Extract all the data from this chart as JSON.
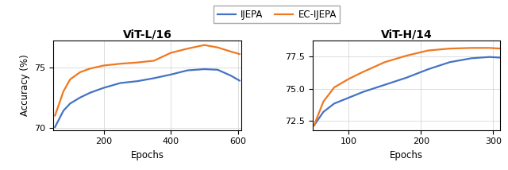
{
  "title1": "ViT-L/16",
  "title2": "ViT-H/14",
  "xlabel": "Epochs",
  "ylabel": "Accuracy (%)",
  "legend_labels": [
    "IJEPA",
    "EC-IJEPA"
  ],
  "colors": {
    "ijepa": "#4472c4",
    "ec_ijepa": "#f07820"
  },
  "plot1": {
    "xlim": [
      50,
      610
    ],
    "ylim": [
      69.8,
      77.2
    ],
    "xticks": [
      200,
      400,
      600
    ],
    "yticks": [
      70,
      75
    ],
    "ijepa_x": [
      55,
      80,
      100,
      130,
      160,
      200,
      250,
      300,
      350,
      400,
      450,
      500,
      540,
      580,
      605
    ],
    "ijepa_y": [
      70.05,
      71.4,
      72.0,
      72.5,
      72.9,
      73.3,
      73.7,
      73.85,
      74.1,
      74.4,
      74.75,
      74.85,
      74.8,
      74.3,
      73.9
    ],
    "ec_x": [
      55,
      80,
      100,
      130,
      160,
      200,
      250,
      300,
      350,
      400,
      450,
      500,
      540,
      580,
      605
    ],
    "ec_y": [
      71.0,
      73.0,
      74.0,
      74.6,
      74.9,
      75.15,
      75.3,
      75.4,
      75.55,
      76.2,
      76.55,
      76.85,
      76.65,
      76.3,
      76.1
    ]
  },
  "plot2": {
    "xlim": [
      50,
      310
    ],
    "ylim": [
      71.8,
      78.7
    ],
    "xticks": [
      100,
      200,
      300
    ],
    "yticks": [
      72.5,
      75.0,
      77.5
    ],
    "ijepa_x": [
      52,
      65,
      80,
      100,
      120,
      150,
      180,
      210,
      240,
      270,
      295,
      310
    ],
    "ijepa_y": [
      72.15,
      73.2,
      73.85,
      74.3,
      74.75,
      75.3,
      75.85,
      76.5,
      77.05,
      77.35,
      77.45,
      77.4
    ],
    "ec_x": [
      52,
      65,
      80,
      100,
      120,
      150,
      180,
      210,
      240,
      270,
      295,
      310
    ],
    "ec_y": [
      72.15,
      74.0,
      75.1,
      75.75,
      76.3,
      77.05,
      77.55,
      77.95,
      78.1,
      78.15,
      78.15,
      78.1
    ]
  },
  "line_width": 1.6,
  "background_color": "#ffffff",
  "grid_color": "#cccccc",
  "grid_alpha": 0.9,
  "grid_lw": 0.5
}
